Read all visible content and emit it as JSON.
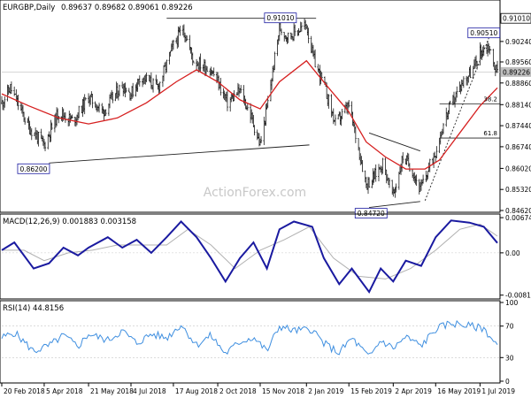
{
  "header": {
    "symbol": "EURGBP,Daily",
    "ohlc": "0.89637 0.89682 0.89061 0.89226"
  },
  "watermark": "ActionForex.com",
  "colors": {
    "bg": "#ffffff",
    "axis": "#000000",
    "grid": "#c8c8c8",
    "price_bar": "#1a1a1a",
    "ma": "#d62020",
    "macd": "#1a1aa0",
    "signal": "#b0b0b0",
    "rsi": "#3f8fe0",
    "rsi_level": "#cc3333",
    "trendline": "#222222",
    "callout_border": "#1a1aa0",
    "current_bg": "#bfbfbf",
    "watermark": "#c8c8c8"
  },
  "chart_data": [
    {
      "type": "candlestick",
      "name": "price",
      "title": "EURGBP,Daily 0.89637 0.89682 0.89061 0.89226",
      "ylim": [
        0.8462,
        0.9156
      ],
      "yticks": [
        0.8462,
        0.8532,
        0.8602,
        0.8674,
        0.8744,
        0.8814,
        0.8886,
        0.8956,
        0.9024
      ],
      "ytick_labels": [
        "0.84620",
        "0.85320",
        "0.86020",
        "0.86740",
        "0.87440",
        "0.88140",
        "0.88860",
        "0.89560",
        "0.90240"
      ],
      "highlighted_levels": [
        {
          "label": "0.91010",
          "value": 0.9101,
          "style": "box"
        },
        {
          "label": "0.89226",
          "value": 0.89226,
          "style": "current"
        }
      ],
      "x_start": "2018-02-20",
      "x_end": "2019-07-19",
      "xtick_dates": [
        "2018-02-20",
        "2018-04-05",
        "2018-05-21",
        "2018-07-04",
        "2018-08-17",
        "2018-10-02",
        "2018-11-15",
        "2019-01-02",
        "2019-02-15",
        "2019-04-02",
        "2019-05-16",
        "2019-07-01"
      ],
      "xtick_labels": [
        "20 Feb 2018",
        "5 Apr 2018",
        "21 May 2018",
        "4 Jul 2018",
        "17 Aug 2018",
        "2 Oct 2018",
        "15 Nov 2018",
        "2 Jan 2019",
        "15 Feb 2019",
        "2 Apr 2019",
        "16 May 2019",
        "1 Jul 2019"
      ],
      "price_path": [
        [
          "2018-02-20",
          0.882
        ],
        [
          "2018-03-01",
          0.887
        ],
        [
          "2018-03-20",
          0.874
        ],
        [
          "2018-04-05",
          0.868
        ],
        [
          "2018-04-20",
          0.879
        ],
        [
          "2018-05-05",
          0.876
        ],
        [
          "2018-05-21",
          0.884
        ],
        [
          "2018-06-05",
          0.879
        ],
        [
          "2018-06-25",
          0.888
        ],
        [
          "2018-07-04",
          0.885
        ],
        [
          "2018-07-15",
          0.891
        ],
        [
          "2018-08-01",
          0.887
        ],
        [
          "2018-08-17",
          0.901
        ],
        [
          "2018-08-27",
          0.907
        ],
        [
          "2018-09-07",
          0.896
        ],
        [
          "2018-09-25",
          0.893
        ],
        [
          "2018-10-02",
          0.889
        ],
        [
          "2018-10-12",
          0.882
        ],
        [
          "2018-10-25",
          0.886
        ],
        [
          "2018-11-05",
          0.878
        ],
        [
          "2018-11-15",
          0.868
        ],
        [
          "2018-11-23",
          0.882
        ],
        [
          "2018-12-05",
          0.907
        ],
        [
          "2018-12-14",
          0.904
        ],
        [
          "2019-01-02",
          0.908
        ],
        [
          "2019-01-09",
          0.897
        ],
        [
          "2019-01-20",
          0.888
        ],
        [
          "2019-02-01",
          0.875
        ],
        [
          "2019-02-15",
          0.881
        ],
        [
          "2019-02-25",
          0.867
        ],
        [
          "2019-03-05",
          0.855
        ],
        [
          "2019-03-12",
          0.857
        ],
        [
          "2019-03-22",
          0.862
        ],
        [
          "2019-04-02",
          0.851
        ],
        [
          "2019-04-12",
          0.864
        ],
        [
          "2019-04-20",
          0.861
        ],
        [
          "2019-04-30",
          0.853
        ],
        [
          "2019-05-05",
          0.857
        ],
        [
          "2019-05-16",
          0.866
        ],
        [
          "2019-05-26",
          0.877
        ],
        [
          "2019-06-05",
          0.884
        ],
        [
          "2019-06-15",
          0.89
        ],
        [
          "2019-06-24",
          0.893
        ],
        [
          "2019-07-01",
          0.899
        ],
        [
          "2019-07-10",
          0.901
        ],
        [
          "2019-07-15",
          0.895
        ],
        [
          "2019-07-19",
          0.89226
        ]
      ],
      "ma": [
        [
          "2018-02-20",
          0.885
        ],
        [
          "2018-03-20",
          0.881
        ],
        [
          "2018-04-20",
          0.877
        ],
        [
          "2018-05-21",
          0.875
        ],
        [
          "2018-06-20",
          0.877
        ],
        [
          "2018-07-20",
          0.882
        ],
        [
          "2018-08-20",
          0.889
        ],
        [
          "2018-09-10",
          0.893
        ],
        [
          "2018-10-02",
          0.889
        ],
        [
          "2018-10-25",
          0.883
        ],
        [
          "2018-11-15",
          0.88
        ],
        [
          "2018-12-05",
          0.889
        ],
        [
          "2019-01-02",
          0.896
        ],
        [
          "2019-01-25",
          0.887
        ],
        [
          "2019-02-15",
          0.879
        ],
        [
          "2019-03-05",
          0.869
        ],
        [
          "2019-03-25",
          0.864
        ],
        [
          "2019-04-15",
          0.86
        ],
        [
          "2019-05-05",
          0.86
        ],
        [
          "2019-05-20",
          0.863
        ],
        [
          "2019-06-10",
          0.872
        ],
        [
          "2019-07-01",
          0.881
        ],
        [
          "2019-07-19",
          0.887
        ]
      ],
      "support_line": {
        "from": [
          "2018-04-10",
          0.862
        ],
        "to": [
          "2019-01-05",
          0.868
        ]
      },
      "top_line": {
        "from": [
          "2018-08-10",
          0.9101
        ],
        "to": [
          "2019-01-12",
          0.9101
        ]
      },
      "wedge_upper": {
        "from": [
          "2019-03-08",
          0.872
        ],
        "to": [
          "2019-04-30",
          0.866
        ]
      },
      "wedge_lower": {
        "from": [
          "2019-03-08",
          0.8472
        ],
        "to": [
          "2019-04-30",
          0.8492
        ]
      },
      "dotted_trend": {
        "from": [
          "2019-05-05",
          0.8495
        ],
        "to": [
          "2019-07-12",
          0.9051
        ]
      },
      "fib_levels": [
        {
          "label": "38.2",
          "value": 0.8816,
          "from": "2019-05-20"
        },
        {
          "label": "61.8",
          "value": 0.8703,
          "from": "2019-05-20"
        }
      ],
      "callouts": [
        {
          "label": "0.91010",
          "date": "2018-12-06",
          "value": 0.9101
        },
        {
          "label": "0.90510",
          "date": "2019-07-05",
          "value": 0.9051
        },
        {
          "label": "0.86200",
          "date": "2018-03-25",
          "value": 0.862
        },
        {
          "label": "0.84720",
          "date": "2019-03-10",
          "value": 0.8472
        }
      ]
    },
    {
      "type": "line",
      "name": "macd",
      "title": "MACD(12,26,9) 0.001883 0.003158",
      "ylim": [
        -0.0085,
        0.0071
      ],
      "yticks": [
        0.006745,
        0.0,
        -0.008109
      ],
      "ytick_labels": [
        "0.006745",
        "0.00",
        "-0.008109"
      ],
      "series": [
        {
          "name": "MACD",
          "points": [
            [
              "2018-02-20",
              0.0005
            ],
            [
              "2018-03-05",
              0.002
            ],
            [
              "2018-03-25",
              -0.003
            ],
            [
              "2018-04-10",
              -0.002
            ],
            [
              "2018-04-25",
              0.001
            ],
            [
              "2018-05-10",
              -0.0005
            ],
            [
              "2018-05-21",
              0.001
            ],
            [
              "2018-06-10",
              0.003
            ],
            [
              "2018-06-25",
              0.001
            ],
            [
              "2018-07-10",
              0.0025
            ],
            [
              "2018-07-25",
              0.0
            ],
            [
              "2018-08-10",
              0.003
            ],
            [
              "2018-08-25",
              0.006
            ],
            [
              "2018-09-10",
              0.003
            ],
            [
              "2018-09-25",
              -0.001
            ],
            [
              "2018-10-10",
              -0.0055
            ],
            [
              "2018-10-25",
              -0.001
            ],
            [
              "2018-11-08",
              0.002
            ],
            [
              "2018-11-22",
              -0.003
            ],
            [
              "2018-12-05",
              0.0045
            ],
            [
              "2018-12-20",
              0.006
            ],
            [
              "2019-01-08",
              0.005
            ],
            [
              "2019-01-20",
              -0.001
            ],
            [
              "2019-02-05",
              -0.006
            ],
            [
              "2019-02-18",
              -0.003
            ],
            [
              "2019-03-08",
              -0.0075
            ],
            [
              "2019-03-20",
              -0.003
            ],
            [
              "2019-04-02",
              -0.0055
            ],
            [
              "2019-04-15",
              -0.0015
            ],
            [
              "2019-05-01",
              -0.0025
            ],
            [
              "2019-05-16",
              0.003
            ],
            [
              "2019-06-01",
              0.0062
            ],
            [
              "2019-06-20",
              0.0058
            ],
            [
              "2019-07-05",
              0.005
            ],
            [
              "2019-07-19",
              0.0019
            ]
          ]
        },
        {
          "name": "Signal",
          "points": [
            [
              "2018-02-20",
              0.0005
            ],
            [
              "2018-03-15",
              0.0005
            ],
            [
              "2018-04-05",
              -0.0015
            ],
            [
              "2018-04-30",
              0.0
            ],
            [
              "2018-05-25",
              0.0005
            ],
            [
              "2018-06-20",
              0.0015
            ],
            [
              "2018-07-15",
              0.0015
            ],
            [
              "2018-08-10",
              0.0015
            ],
            [
              "2018-09-01",
              0.0045
            ],
            [
              "2018-09-25",
              0.0015
            ],
            [
              "2018-10-20",
              -0.003
            ],
            [
              "2018-11-15",
              0.0005
            ],
            [
              "2018-12-10",
              0.0025
            ],
            [
              "2019-01-05",
              0.005
            ],
            [
              "2019-01-30",
              -0.001
            ],
            [
              "2019-02-25",
              -0.0045
            ],
            [
              "2019-03-25",
              -0.005
            ],
            [
              "2019-04-20",
              -0.003
            ],
            [
              "2019-05-16",
              0.0005
            ],
            [
              "2019-06-10",
              0.0045
            ],
            [
              "2019-07-01",
              0.0055
            ],
            [
              "2019-07-19",
              0.0032
            ]
          ]
        }
      ]
    },
    {
      "type": "line",
      "name": "rsi",
      "title": "RSI(14) 44.8156",
      "ylim": [
        0,
        100
      ],
      "yticks": [
        100,
        70,
        30,
        0
      ],
      "ytick_labels": [
        "100",
        "70",
        "30",
        "0"
      ],
      "levels": [
        70,
        30
      ],
      "series": [
        {
          "name": "RSI",
          "points": [
            [
              "2018-02-20",
              55
            ],
            [
              "2018-03-05",
              62
            ],
            [
              "2018-03-25",
              38
            ],
            [
              "2018-04-10",
              45
            ],
            [
              "2018-04-25",
              58
            ],
            [
              "2018-05-10",
              44
            ],
            [
              "2018-05-21",
              60
            ],
            [
              "2018-06-10",
              52
            ],
            [
              "2018-06-25",
              64
            ],
            [
              "2018-07-10",
              48
            ],
            [
              "2018-07-25",
              60
            ],
            [
              "2018-08-10",
              55
            ],
            [
              "2018-08-25",
              72
            ],
            [
              "2018-09-10",
              46
            ],
            [
              "2018-09-25",
              58
            ],
            [
              "2018-10-10",
              35
            ],
            [
              "2018-10-25",
              50
            ],
            [
              "2018-11-08",
              56
            ],
            [
              "2018-11-22",
              38
            ],
            [
              "2018-12-05",
              70
            ],
            [
              "2018-12-20",
              64
            ],
            [
              "2019-01-08",
              66
            ],
            [
              "2019-01-20",
              48
            ],
            [
              "2019-02-05",
              36
            ],
            [
              "2019-02-18",
              55
            ],
            [
              "2019-03-08",
              30
            ],
            [
              "2019-03-20",
              52
            ],
            [
              "2019-04-02",
              42
            ],
            [
              "2019-04-15",
              56
            ],
            [
              "2019-05-01",
              45
            ],
            [
              "2019-05-16",
              66
            ],
            [
              "2019-06-01",
              74
            ],
            [
              "2019-06-20",
              70
            ],
            [
              "2019-07-05",
              67
            ],
            [
              "2019-07-19",
              45
            ]
          ]
        }
      ]
    }
  ]
}
